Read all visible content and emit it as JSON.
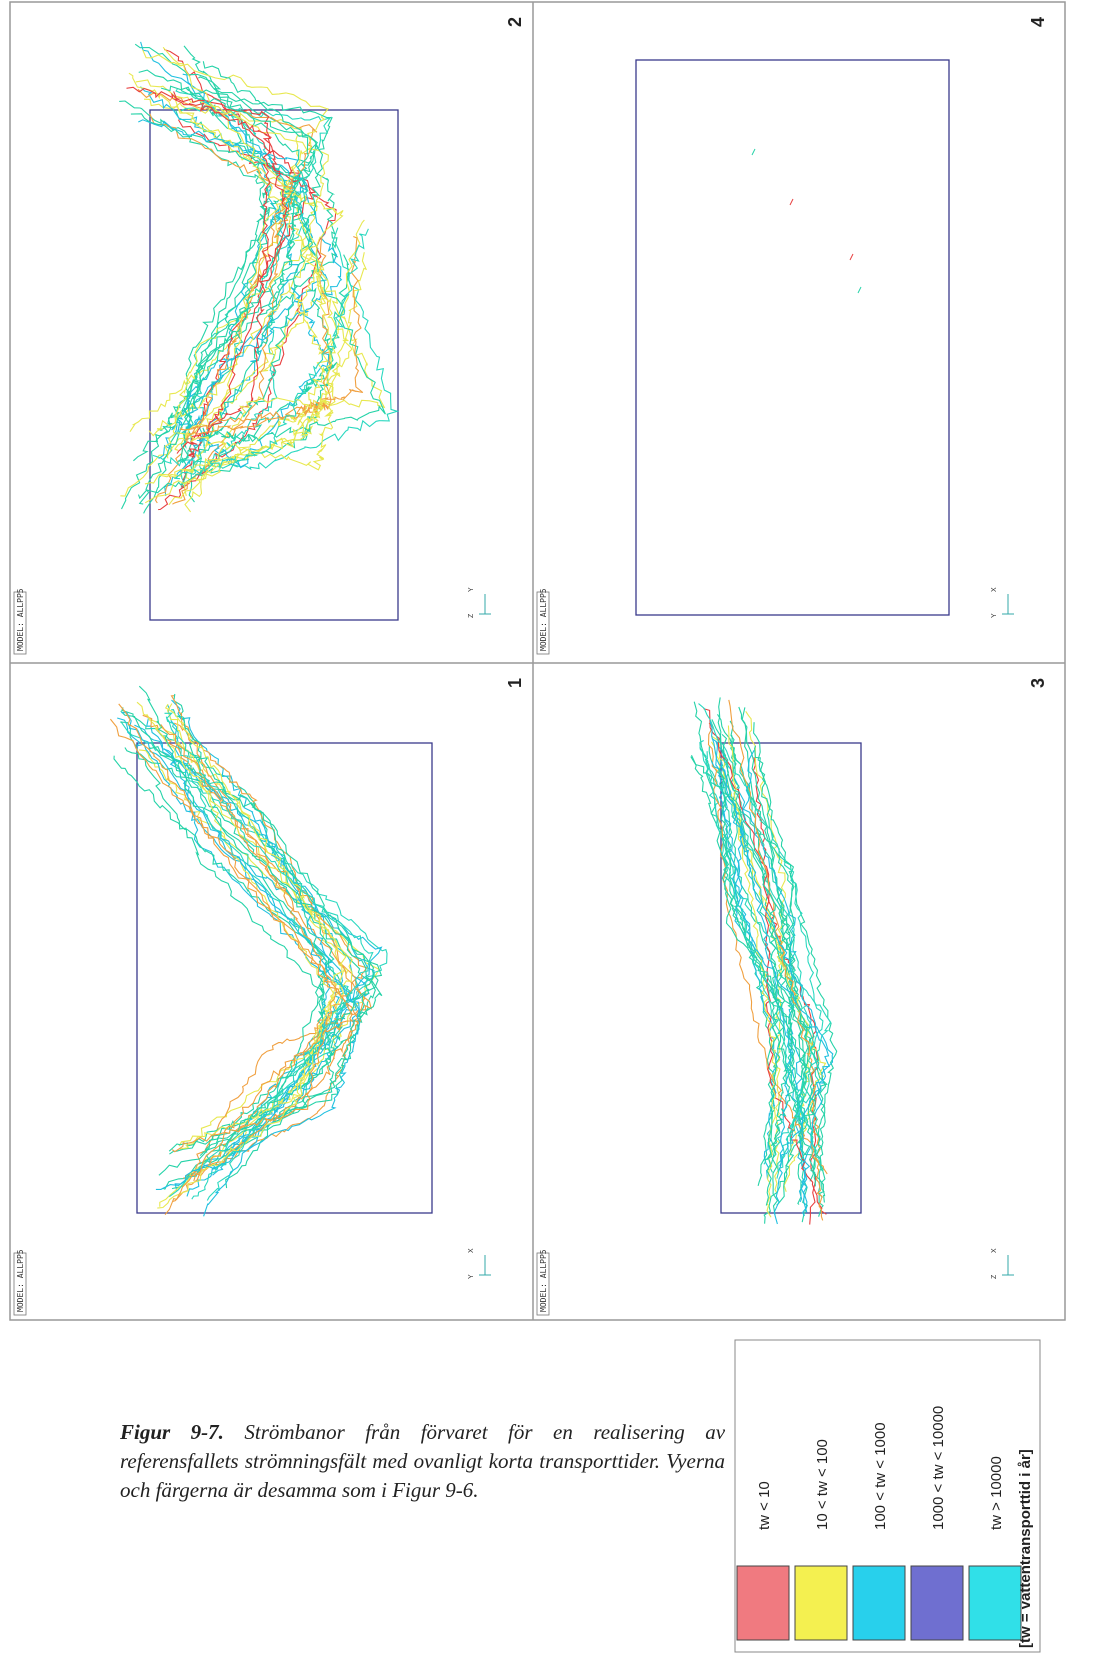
{
  "figure": {
    "panels": [
      {
        "number": "2",
        "model": "MODEL: ALLPP5",
        "axes": [
          "Z",
          "Y"
        ]
      },
      {
        "number": "4",
        "model": "MODEL: ALLPP5",
        "axes": [
          "Y",
          "X"
        ]
      },
      {
        "number": "1",
        "model": "MODEL: ALLPP5",
        "axes": [
          "Y",
          "X"
        ]
      },
      {
        "number": "3",
        "model": "MODEL: ALLPP5",
        "axes": [
          "Z",
          "X"
        ]
      }
    ],
    "legend": {
      "items": [
        {
          "label": "tw < 10",
          "color": "#f07a80"
        },
        {
          "label": "10 < tw < 100",
          "color": "#f4f050"
        },
        {
          "label": "100 < tw < 1000",
          "color": "#28d0ec"
        },
        {
          "label": "1000 < tw < 10000",
          "color": "#6f6fd0"
        },
        {
          "label": "tw > 10000",
          "color": "#30e0e8"
        }
      ],
      "note": "[tw = vattentransporttid i år]"
    },
    "caption": {
      "label": "Figur 9-7.",
      "text": "Strömbanor från förvaret för en realisering av referensfallets strömningsfält med ovanligt korta transporttider. Vyerna och färgerna är desamma som i Figur 9-6."
    }
  }
}
